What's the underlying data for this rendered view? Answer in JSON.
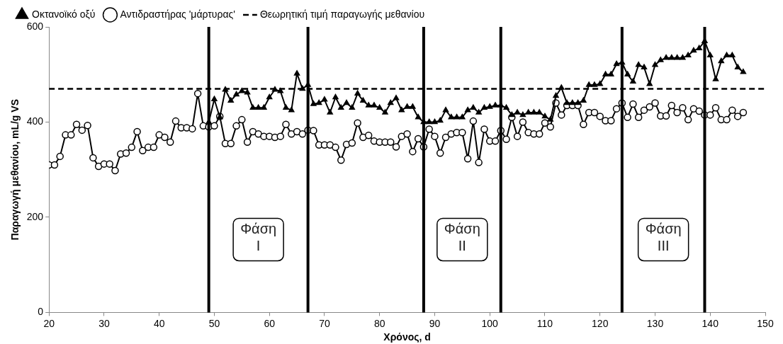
{
  "chart_data": {
    "type": "line",
    "xlabel": "Χρόνος, d",
    "ylabel": "Παραγωγή μεθανίου, mL/g VS",
    "xlim": [
      20,
      150
    ],
    "xticks": [
      20,
      30,
      40,
      50,
      60,
      70,
      80,
      90,
      100,
      110,
      120,
      130,
      140,
      150
    ],
    "ylim": [
      0,
      600
    ],
    "yticks": [
      0,
      200,
      400,
      600
    ],
    "grid": false,
    "legend": "top",
    "series": [
      {
        "name": "Οκτανοϊκό οξύ",
        "color": "#000000",
        "marker": "triangle",
        "x": [
          49,
          50,
          51,
          52,
          53,
          54,
          55,
          56,
          57,
          58,
          59,
          60,
          61,
          62,
          63,
          64,
          65,
          66,
          67,
          68,
          69,
          70,
          71,
          72,
          73,
          74,
          75,
          76,
          77,
          78,
          79,
          80,
          81,
          82,
          83,
          84,
          85,
          86,
          87,
          88,
          89,
          90,
          91,
          92,
          93,
          94,
          95,
          96,
          97,
          98,
          99,
          100,
          101,
          102,
          103,
          104,
          105,
          106,
          107,
          108,
          109,
          110,
          111,
          112,
          113,
          114,
          115,
          116,
          117,
          118,
          119,
          120,
          121,
          122,
          123,
          124,
          125,
          126,
          127,
          128,
          129,
          130,
          131,
          132,
          133,
          134,
          135,
          136,
          137,
          138,
          139,
          140,
          141,
          142,
          143,
          144,
          145,
          146
        ],
        "values": [
          400,
          448,
          410,
          468,
          445,
          458,
          465,
          462,
          430,
          430,
          430,
          452,
          468,
          465,
          430,
          425,
          502,
          470,
          478,
          438,
          440,
          447,
          420,
          452,
          430,
          440,
          430,
          460,
          445,
          435,
          435,
          430,
          420,
          440,
          450,
          425,
          432,
          432,
          410,
          400,
          400,
          400,
          403,
          425,
          410,
          410,
          410,
          425,
          430,
          420,
          430,
          432,
          435,
          435,
          430,
          415,
          420,
          415,
          420,
          420,
          420,
          412,
          405,
          455,
          472,
          440,
          440,
          440,
          445,
          478,
          478,
          480,
          500,
          500,
          522,
          525,
          500,
          485,
          520,
          515,
          480,
          520,
          530,
          535,
          535,
          535,
          535,
          540,
          550,
          555,
          570,
          540,
          490,
          528,
          540,
          540,
          515,
          505
        ]
      },
      {
        "name": "Αντιδραστήρας 'μάρτυρας'",
        "color": "#000000",
        "marker": "circle",
        "x": [
          20,
          21,
          22,
          23,
          24,
          25,
          26,
          27,
          28,
          29,
          30,
          31,
          32,
          33,
          34,
          35,
          36,
          37,
          38,
          39,
          40,
          41,
          42,
          43,
          44,
          45,
          46,
          47,
          48,
          49,
          50,
          51,
          52,
          53,
          54,
          55,
          56,
          57,
          58,
          59,
          60,
          61,
          62,
          63,
          64,
          65,
          66,
          67,
          68,
          69,
          70,
          71,
          72,
          73,
          74,
          75,
          76,
          77,
          78,
          79,
          80,
          81,
          82,
          83,
          84,
          85,
          86,
          87,
          88,
          89,
          90,
          91,
          92,
          93,
          94,
          95,
          96,
          97,
          98,
          99,
          100,
          101,
          102,
          103,
          104,
          105,
          106,
          107,
          108,
          109,
          110,
          111,
          112,
          113,
          114,
          115,
          116,
          117,
          118,
          119,
          120,
          121,
          122,
          123,
          124,
          125,
          126,
          127,
          128,
          129,
          130,
          131,
          132,
          133,
          134,
          135,
          136,
          137,
          138,
          139,
          140,
          141,
          142,
          143,
          144,
          145,
          146
        ],
        "values": [
          310,
          310,
          328,
          373,
          373,
          395,
          383,
          393,
          325,
          307,
          312,
          312,
          298,
          333,
          335,
          347,
          380,
          340,
          347,
          347,
          373,
          368,
          358,
          402,
          388,
          388,
          386,
          460,
          392,
          390,
          392,
          412,
          355,
          355,
          392,
          405,
          358,
          380,
          375,
          370,
          370,
          368,
          370,
          395,
          375,
          380,
          375,
          383,
          382,
          352,
          352,
          352,
          347,
          320,
          353,
          356,
          398,
          368,
          372,
          360,
          358,
          358,
          358,
          348,
          370,
          375,
          338,
          365,
          348,
          385,
          370,
          335,
          368,
          375,
          378,
          378,
          323,
          402,
          315,
          385,
          360,
          360,
          382,
          364,
          410,
          370,
          400,
          378,
          375,
          375,
          398,
          390,
          440,
          415,
          435,
          435,
          435,
          395,
          420,
          420,
          412,
          403,
          403,
          428,
          440,
          410,
          438,
          410,
          425,
          432,
          440,
          413,
          413,
          435,
          420,
          430,
          405,
          428,
          423,
          415,
          415,
          430,
          405,
          405,
          425,
          412,
          420
        ]
      },
      {
        "name": "Θεωρητική τιμή παραγωγής μεθανίου",
        "color": "#000000",
        "marker": "none",
        "line_style": "dashed",
        "x": [
          20,
          150
        ],
        "values": [
          470,
          470
        ]
      }
    ],
    "ref_lines": [
      {
        "axis": "x",
        "value": 49,
        "color": "#000000"
      },
      {
        "axis": "x",
        "value": 67,
        "color": "#000000"
      },
      {
        "axis": "x",
        "value": 88,
        "color": "#000000"
      },
      {
        "axis": "x",
        "value": 102,
        "color": "#000000"
      },
      {
        "axis": "x",
        "value": 124,
        "color": "#000000"
      },
      {
        "axis": "x",
        "value": 139,
        "color": "#000000"
      }
    ],
    "annotations": [
      "Φάση\nI",
      "Φάση\nII",
      "Φάση\nIII"
    ]
  }
}
